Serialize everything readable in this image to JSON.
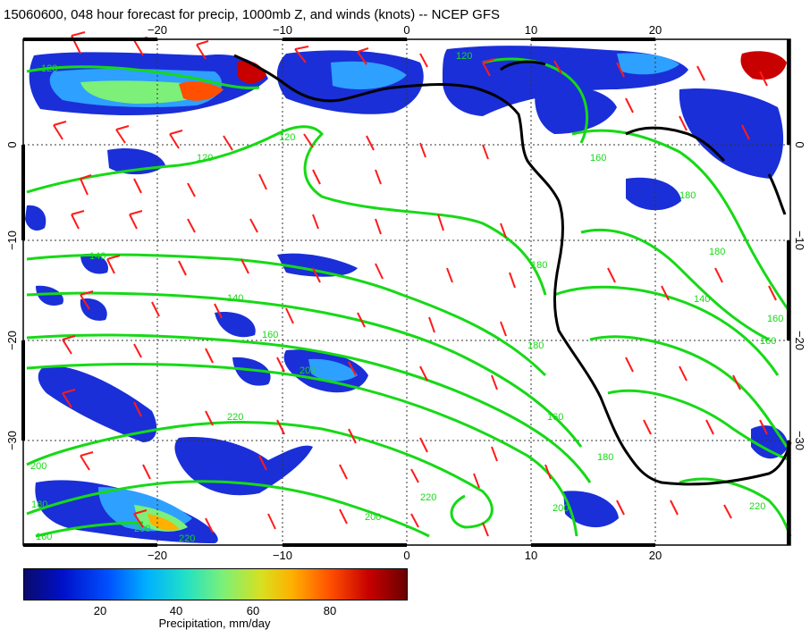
{
  "title": "15060600, 048 hour forecast for precip, 1000mb Z, and winds (knots) -- NCEP GFS",
  "map": {
    "lon_ticks": [
      "−20",
      "−10",
      "0",
      "10",
      "20"
    ],
    "lat_ticks": [
      "0",
      "−10",
      "−20",
      "−30"
    ],
    "contour_labels": [
      "120",
      "120",
      "120",
      "140",
      "140",
      "160",
      "180",
      "200",
      "220",
      "180",
      "160",
      "200",
      "160",
      "140",
      "180",
      "200",
      "220",
      "200",
      "120",
      "160",
      "180",
      "220",
      "180",
      "160",
      "160",
      "180",
      "200",
      "220"
    ],
    "colors": {
      "contour": "#16d916",
      "barb": "#ff1a1a",
      "coast": "#000000",
      "grid": "#333333"
    }
  },
  "colorbar": {
    "ticks": [
      "20",
      "40",
      "60",
      "80"
    ],
    "title": "Precipitation, mm/day",
    "range": [
      0,
      100
    ]
  }
}
